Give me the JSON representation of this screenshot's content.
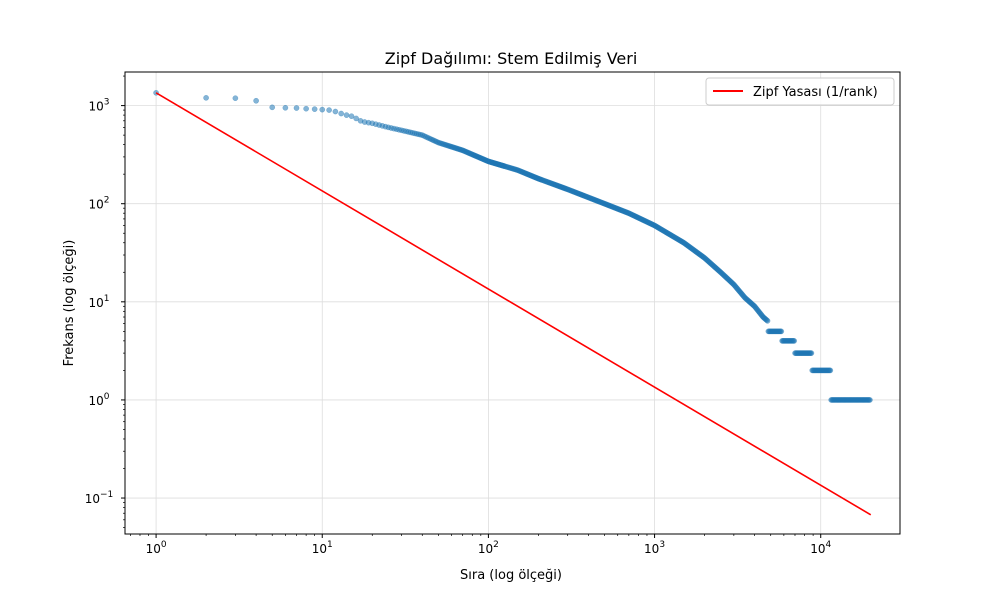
{
  "chart_data": {
    "type": "scatter",
    "title": "Zipf Dağılımı: Stem Edilmiş Veri",
    "xlabel": "Sıra (log ölçeği)",
    "ylabel": "Frekans (log ölçeği)",
    "x_scale": "log",
    "y_scale": "log",
    "xlim": [
      0.65,
      30000
    ],
    "ylim": [
      0.043,
      2200
    ],
    "x_ticks": [
      {
        "value": 1,
        "base": "10",
        "exp": "0"
      },
      {
        "value": 10,
        "base": "10",
        "exp": "1"
      },
      {
        "value": 100,
        "base": "10",
        "exp": "2"
      },
      {
        "value": 1000,
        "base": "10",
        "exp": "3"
      },
      {
        "value": 10000,
        "base": "10",
        "exp": "4"
      }
    ],
    "y_ticks": [
      {
        "value": 0.1,
        "base": "10",
        "exp": "−1"
      },
      {
        "value": 1,
        "base": "10",
        "exp": "0"
      },
      {
        "value": 10,
        "base": "10",
        "exp": "1"
      },
      {
        "value": 100,
        "base": "10",
        "exp": "2"
      },
      {
        "value": 1000,
        "base": "10",
        "exp": "3"
      }
    ],
    "grid": true,
    "legend_position": "top-right",
    "legend": [
      {
        "label": "Zipf Yasası (1/rank)",
        "color": "#ff0000"
      }
    ],
    "series": [
      {
        "kind": "scatter",
        "color": "#1f77b4",
        "points": [
          [
            1,
            1350
          ],
          [
            2,
            1200
          ],
          [
            3,
            1190
          ],
          [
            4,
            1120
          ],
          [
            5,
            960
          ],
          [
            6,
            950
          ],
          [
            7,
            945
          ],
          [
            8,
            930
          ],
          [
            9,
            920
          ],
          [
            10,
            910
          ],
          [
            11,
            900
          ],
          [
            12,
            870
          ],
          [
            13,
            830
          ],
          [
            14,
            800
          ],
          [
            15,
            780
          ],
          [
            16,
            740
          ],
          [
            17,
            700
          ],
          [
            18,
            680
          ],
          [
            20,
            660
          ],
          [
            25,
            600
          ],
          [
            30,
            560
          ],
          [
            40,
            500
          ],
          [
            50,
            420
          ],
          [
            70,
            350
          ],
          [
            100,
            270
          ],
          [
            150,
            220
          ],
          [
            200,
            180
          ],
          [
            300,
            140
          ],
          [
            500,
            100
          ],
          [
            700,
            80
          ],
          [
            1000,
            60
          ],
          [
            1500,
            40
          ],
          [
            2000,
            28
          ],
          [
            2500,
            20
          ],
          [
            3000,
            15
          ],
          [
            3500,
            11
          ],
          [
            4000,
            9
          ],
          [
            4500,
            7
          ],
          [
            5000,
            6
          ],
          [
            6000,
            5
          ],
          [
            7000,
            4
          ],
          [
            8500,
            3
          ],
          [
            11000,
            2
          ],
          [
            20000,
            1
          ]
        ],
        "plateaus": [
          {
            "y": 5,
            "x_from": 4800,
            "x_to": 5800
          },
          {
            "y": 4,
            "x_from": 5800,
            "x_to": 7000
          },
          {
            "y": 3,
            "x_from": 7000,
            "x_to": 8800
          },
          {
            "y": 2,
            "x_from": 8800,
            "x_to": 11500
          },
          {
            "y": 1,
            "x_from": 11500,
            "x_to": 20000
          }
        ]
      },
      {
        "kind": "line",
        "name": "Zipf Yasası (1/rank)",
        "color": "#ff0000",
        "points": [
          [
            1,
            1350
          ],
          [
            20000,
            0.0675
          ]
        ]
      }
    ]
  }
}
